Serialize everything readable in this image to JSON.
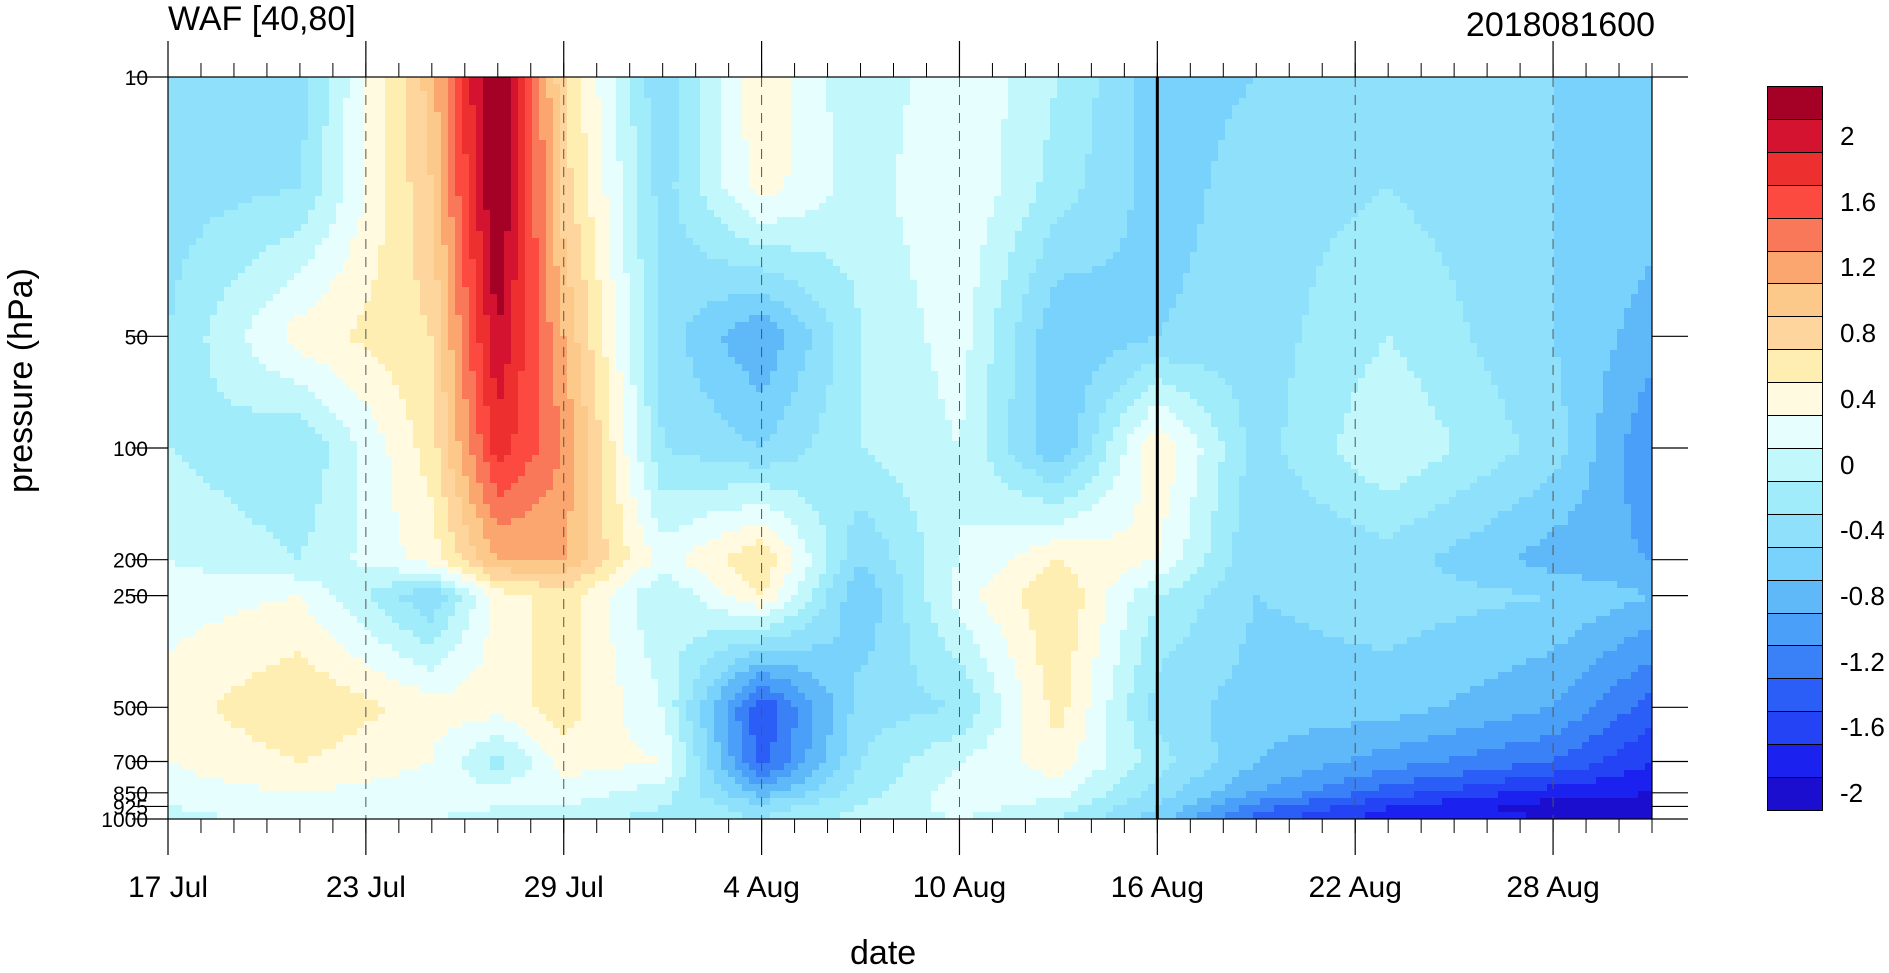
{
  "chart_data": {
    "type": "heatmap",
    "title_left": "WAF [40,80]",
    "title_right": "2018081600",
    "xlabel": "date",
    "ylabel": "pressure (hPa)",
    "y_scale": "log",
    "y_reversed": true,
    "x_tick_labels": [
      "17 Jul",
      "23 Jul",
      "29 Jul",
      "4 Aug",
      "10 Aug",
      "16 Aug",
      "22 Aug",
      "28 Aug"
    ],
    "x_tick_dates": [
      "2018-07-17",
      "2018-07-23",
      "2018-07-29",
      "2018-08-04",
      "2018-08-10",
      "2018-08-16",
      "2018-08-22",
      "2018-08-28"
    ],
    "x_range": [
      "2018-07-17",
      "2018-08-31"
    ],
    "y_tick_labels": [
      "10",
      "50",
      "100",
      "200",
      "250",
      "500",
      "700",
      "850",
      "925",
      "1000"
    ],
    "y_ticks": [
      10,
      50,
      100,
      200,
      250,
      500,
      700,
      850,
      925,
      1000
    ],
    "y_range": [
      10,
      1000
    ],
    "vertical_line_date": "2018-08-16",
    "colorbar_labels": [
      "2",
      "1.6",
      "1.2",
      "0.8",
      "0.4",
      "0",
      "-0.4",
      "-0.8",
      "-1.2",
      "-1.6",
      "-2"
    ],
    "colorbar_levels": [
      2.2,
      2.0,
      1.8,
      1.6,
      1.4,
      1.2,
      1.0,
      0.8,
      0.6,
      0.4,
      0.2,
      0.0,
      -0.2,
      -0.4,
      -0.6,
      -0.8,
      -1.0,
      -1.2,
      -1.4,
      -1.6,
      -1.8,
      -2.0,
      -2.2
    ],
    "colors": [
      "#a50026",
      "#d31330",
      "#ed2f30",
      "#fc4a40",
      "#f9785a",
      "#fba56f",
      "#fdc98b",
      "#fed59c",
      "#feeeb1",
      "#fffae0",
      "#e6fffe",
      "#c2f8fc",
      "#a1ecfb",
      "#8fe1fb",
      "#79d2fb",
      "#5fb8f7",
      "#4aa0f8",
      "#3a80f7",
      "#2b5ef6",
      "#2343f5",
      "#1b21ee",
      "#1c0ecf"
    ],
    "times": [
      "2018-07-17",
      "2018-07-21",
      "2018-07-25",
      "2018-07-27",
      "2018-07-29",
      "2018-08-01",
      "2018-08-04",
      "2018-08-07",
      "2018-08-10",
      "2018-08-13",
      "2018-08-16",
      "2018-08-19",
      "2018-08-23",
      "2018-08-28",
      "2018-08-31"
    ],
    "levels": [
      10,
      20,
      50,
      100,
      200,
      250,
      500,
      700,
      850,
      925,
      1000
    ],
    "values": [
      [
        -0.6,
        -0.5,
        0.9,
        2.4,
        0.6,
        -0.6,
        0.4,
        -0.2,
        0.2,
        -0.2,
        -0.7,
        -0.6,
        -0.5,
        -0.6,
        -0.6
      ],
      [
        -0.5,
        -0.4,
        0.8,
        2.3,
        0.7,
        -0.5,
        0.3,
        -0.1,
        0.2,
        -0.3,
        -0.7,
        -0.5,
        -0.4,
        -0.6,
        -0.7
      ],
      [
        -0.4,
        0.3,
        0.6,
        2.0,
        1.0,
        -0.5,
        -1.0,
        -0.2,
        0.1,
        -0.8,
        -0.6,
        -0.5,
        -0.2,
        -0.6,
        -0.9
      ],
      [
        -0.2,
        -0.4,
        0.5,
        1.7,
        1.2,
        -0.4,
        -0.6,
        -0.2,
        0.0,
        -0.8,
        0.4,
        -0.5,
        0.0,
        -0.5,
        -1.2
      ],
      [
        0.0,
        -0.2,
        0.3,
        1.0,
        1.0,
        0.1,
        0.6,
        -0.6,
        0.0,
        0.4,
        0.2,
        -0.6,
        -0.5,
        -0.9,
        -1.0
      ],
      [
        0.1,
        0.2,
        -0.6,
        0.3,
        0.5,
        -0.2,
        0.4,
        -0.8,
        0.1,
        0.6,
        -0.2,
        -0.6,
        -0.5,
        -0.6,
        -0.8
      ],
      [
        0.3,
        0.6,
        0.3,
        0.3,
        0.5,
        0.0,
        -1.6,
        -0.5,
        -0.4,
        0.5,
        -0.5,
        -0.7,
        -0.7,
        -1.0,
        -1.5
      ],
      [
        0.2,
        0.4,
        0.2,
        -0.3,
        0.3,
        0.2,
        -1.5,
        -0.4,
        0.0,
        0.3,
        -0.3,
        -0.8,
        -1.1,
        -1.4,
        -1.8
      ],
      [
        0.1,
        0.2,
        0.1,
        0.1,
        0.1,
        -0.1,
        -0.9,
        -0.3,
        0.1,
        0.1,
        -0.5,
        -1.0,
        -1.5,
        -1.9,
        -2.0
      ],
      [
        0.0,
        0.2,
        0.1,
        0.0,
        0.0,
        -0.2,
        -0.5,
        -0.2,
        0.1,
        -0.1,
        -0.6,
        -1.3,
        -1.8,
        -2.1,
        -2.1
      ],
      [
        -0.1,
        0.1,
        0.0,
        -0.1,
        -0.1,
        -0.3,
        -0.4,
        -0.1,
        0.0,
        -0.2,
        -0.7,
        -1.5,
        -1.9,
        -2.0,
        -2.0
      ]
    ]
  }
}
